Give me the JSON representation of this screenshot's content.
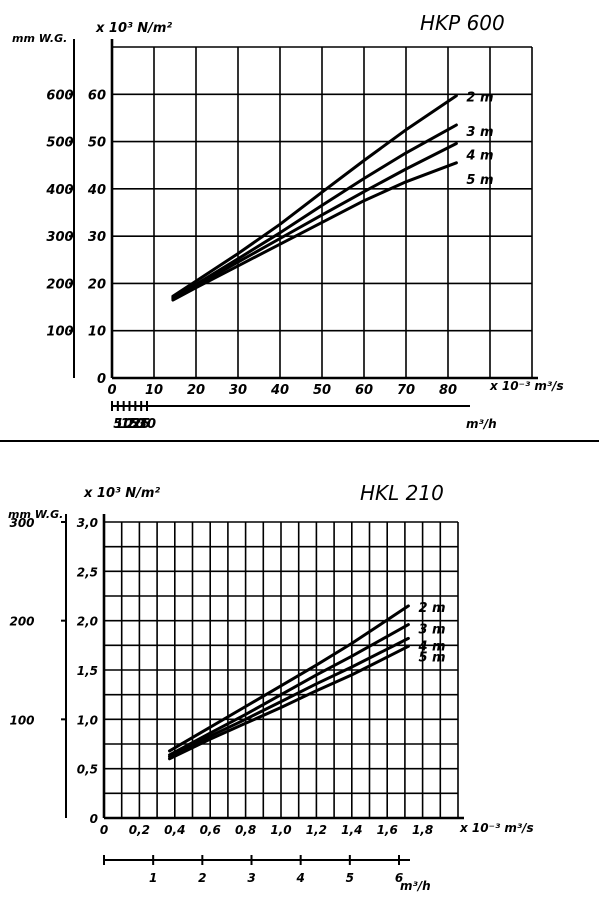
{
  "chart_data": [
    {
      "type": "line",
      "title": "HKP 600",
      "ylabel_si": "x 10³ N/m²",
      "ylabel_alt": "mm W.G.",
      "xlabel_si": "x 10⁻³ m³/s",
      "xlabel_alt": "m³/h",
      "xlim": [
        0,
        100
      ],
      "ylim": [
        0,
        70
      ],
      "x_ticks": [
        "0",
        "10",
        "20",
        "30",
        "40",
        "50",
        "60",
        "70",
        "80"
      ],
      "x_tick_values": [
        0,
        10,
        20,
        30,
        40,
        50,
        60,
        70,
        80
      ],
      "y_ticks": [
        "0",
        "10",
        "20",
        "30",
        "40",
        "50",
        "60"
      ],
      "y_tick_values": [
        0,
        10,
        20,
        30,
        40,
        50,
        60
      ],
      "alt_y_ticks": [
        "100",
        "200",
        "300",
        "400",
        "500",
        "600"
      ],
      "alt_y_tick_values": [
        10,
        20,
        30,
        40,
        50,
        60
      ],
      "alt_x_ticks": [
        "5",
        "10",
        "15",
        "20",
        "25",
        "30"
      ],
      "alt_x_tick_values": [
        5,
        10,
        15,
        20,
        25,
        30
      ],
      "alt_x_factor": 3.6,
      "grid": true,
      "series": [
        {
          "name": "2 m",
          "x": [
            14.5,
            20,
            30,
            40,
            50,
            60,
            70,
            82
          ],
          "y": [
            17.3,
            20.5,
            26.3,
            32.5,
            39.3,
            46.0,
            52.5,
            59.7
          ]
        },
        {
          "name": "3 m",
          "x": [
            14.5,
            20,
            30,
            40,
            50,
            60,
            70,
            82
          ],
          "y": [
            17.0,
            19.8,
            25.2,
            30.7,
            36.5,
            42.2,
            47.6,
            53.5
          ]
        },
        {
          "name": "4 m",
          "x": [
            14.5,
            20,
            30,
            40,
            50,
            60,
            70,
            82
          ],
          "y": [
            16.8,
            19.5,
            24.5,
            29.5,
            34.5,
            39.4,
            44.2,
            49.6
          ]
        },
        {
          "name": "5 m",
          "x": [
            14.5,
            20,
            30,
            40,
            50,
            60,
            70,
            82
          ],
          "y": [
            16.5,
            19.1,
            23.7,
            28.3,
            32.9,
            37.5,
            41.5,
            45.5
          ]
        }
      ]
    },
    {
      "type": "line",
      "title": "HKL 210",
      "ylabel_si": "x 10³ N/m²",
      "ylabel_alt": "mm W.G.",
      "xlabel_si": "x 10⁻³ m³/s",
      "xlabel_alt": "m³/h",
      "xlim": [
        0,
        2.0
      ],
      "ylim": [
        0,
        3.0
      ],
      "x_ticks": [
        "0",
        "0,2",
        "0,4",
        "0,6",
        "0,8",
        "1,0",
        "1,2",
        "1,4",
        "1,6",
        "1,8"
      ],
      "x_tick_values": [
        0,
        0.2,
        0.4,
        0.6,
        0.8,
        1.0,
        1.2,
        1.4,
        1.6,
        1.8
      ],
      "y_ticks": [
        "0",
        "0,5",
        "1,0",
        "1,5",
        "2,0",
        "2,5",
        "3,0"
      ],
      "y_tick_values": [
        0,
        0.5,
        1.0,
        1.5,
        2.0,
        2.5,
        3.0
      ],
      "alt_y_ticks": [
        "100",
        "200",
        "300"
      ],
      "alt_y_tick_values": [
        1.0,
        2.0,
        3.0
      ],
      "alt_x_ticks": [
        "1",
        "2",
        "3",
        "4",
        "5",
        "6"
      ],
      "alt_x_tick_values": [
        1,
        2,
        3,
        4,
        5,
        6
      ],
      "alt_x_factor": 3.6,
      "grid": true,
      "series": [
        {
          "name": "2 m",
          "x": [
            0.37,
            0.6,
            0.8,
            1.0,
            1.2,
            1.4,
            1.72
          ],
          "y": [
            0.68,
            0.92,
            1.13,
            1.34,
            1.55,
            1.77,
            2.15
          ]
        },
        {
          "name": "3 m",
          "x": [
            0.37,
            0.6,
            0.8,
            1.0,
            1.2,
            1.4,
            1.72
          ],
          "y": [
            0.64,
            0.86,
            1.05,
            1.25,
            1.45,
            1.64,
            1.96
          ]
        },
        {
          "name": "4 m",
          "x": [
            0.37,
            0.6,
            0.8,
            1.0,
            1.2,
            1.4,
            1.72
          ],
          "y": [
            0.62,
            0.83,
            1.0,
            1.18,
            1.36,
            1.53,
            1.82
          ]
        },
        {
          "name": "5 m",
          "x": [
            0.37,
            0.6,
            0.8,
            1.0,
            1.2,
            1.4,
            1.72
          ],
          "y": [
            0.6,
            0.8,
            0.96,
            1.12,
            1.29,
            1.45,
            1.74
          ]
        }
      ]
    }
  ]
}
